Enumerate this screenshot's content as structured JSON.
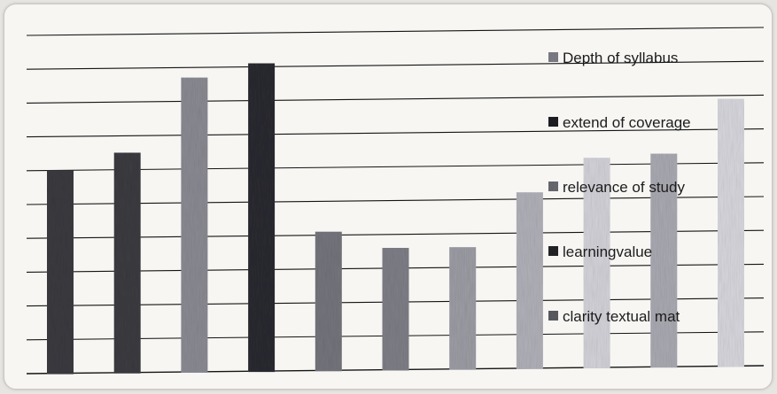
{
  "chart_data": {
    "type": "bar",
    "title": "",
    "xlabel": "",
    "ylabel": "",
    "ylim": [
      0,
      10
    ],
    "grid": true,
    "legend_position": "right",
    "legend": [
      {
        "label": "Depth of syllabus",
        "color": "#7d7d85"
      },
      {
        "label": "extend of coverage",
        "color": "#1e1e22"
      },
      {
        "label": "relevance of study",
        "color": "#6a6a72"
      },
      {
        "label": "learningvalue",
        "color": "#222226"
      },
      {
        "label": "clarity textual mat",
        "color": "#5b5b63"
      }
    ],
    "values": [
      6.0,
      6.5,
      8.7,
      9.1,
      4.1,
      3.6,
      3.6,
      5.2,
      6.2,
      6.3,
      7.9
    ],
    "bar_colors": [
      "#3a3a40",
      "#3b3b41",
      "#8a8a92",
      "#2a2a30",
      "#74747c",
      "#7e7e86",
      "#9c9ca4",
      "#b0b0b8",
      "#d2d2d8",
      "#a9a9b1",
      "#d6d6dc"
    ]
  }
}
